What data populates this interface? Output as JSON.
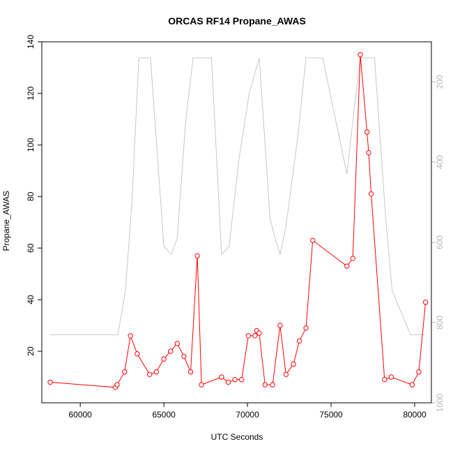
{
  "chart_data": {
    "type": "line",
    "title": "ORCAS RF14 Propane_AWAS",
    "xlabel": "UTC Seconds",
    "ylabel": "Propane_AWAS",
    "xlim": [
      57700,
      81000
    ],
    "ylim": [
      0,
      140
    ],
    "x_ticks": [
      "60000",
      "65000",
      "70000",
      "75000",
      "80000"
    ],
    "y_ticks": [
      "20",
      "40",
      "60",
      "80",
      "100",
      "120",
      "140"
    ],
    "grid": false,
    "series": [
      {
        "color": "#ff0000",
        "marker": "open-circle",
        "x": [
          58200,
          62100,
          62200,
          62650,
          63000,
          63400,
          64150,
          64550,
          65000,
          65400,
          65800,
          66200,
          66600,
          67000,
          67250,
          68450,
          68850,
          69250,
          69650,
          70050,
          70450,
          70550,
          70700,
          71050,
          71500,
          71950,
          72300,
          72750,
          73100,
          73500,
          73900,
          75950,
          76300,
          76750,
          77150,
          77250,
          77400,
          78200,
          78600,
          79850,
          80250,
          80650
        ],
        "y": [
          8,
          6,
          7,
          12,
          26,
          19,
          11,
          12,
          17,
          20,
          23,
          18,
          12,
          57,
          7,
          10,
          8,
          9,
          9,
          26,
          26,
          28,
          27,
          7,
          7,
          30,
          11,
          15,
          24,
          29,
          63,
          53,
          56,
          135,
          105,
          97,
          81,
          9,
          10,
          7,
          12,
          39
        ]
      }
    ],
    "secondary_axis": {
      "side": "right",
      "color": "#b8b8b8",
      "ticks": [
        "200",
        "400",
        "600",
        "800",
        "1000"
      ],
      "ylim_reversed": [
        1000,
        100
      ],
      "series": {
        "color": "#c8c8c8",
        "x": [
          58200,
          62250,
          62700,
          63100,
          63500,
          63800,
          64200,
          65000,
          65450,
          65800,
          66300,
          66750,
          67200,
          67850,
          68450,
          68900,
          69500,
          70100,
          70700,
          71350,
          71650,
          71950,
          72300,
          73000,
          73500,
          73900,
          74500,
          75950,
          76350,
          76750,
          77200,
          77600,
          78250,
          78650,
          79750,
          80600
        ],
        "y": [
          830,
          830,
          720,
          490,
          140,
          140,
          140,
          610,
          630,
          590,
          300,
          140,
          140,
          140,
          630,
          610,
          390,
          230,
          140,
          540,
          590,
          630,
          560,
          340,
          140,
          140,
          140,
          430,
          280,
          140,
          140,
          140,
          530,
          720,
          830,
          830
        ]
      }
    }
  }
}
